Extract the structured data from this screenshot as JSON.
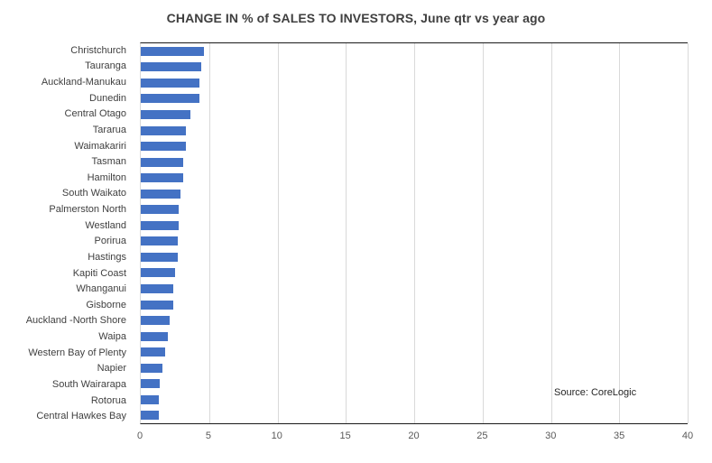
{
  "title": "CHANGE IN % of SALES TO INVESTORS, June qtr vs year ago",
  "source_note": "Source: CoreLogic",
  "colors": {
    "bar": "#4472c4",
    "gridline": "#d9d9d9",
    "axis_line": "#1a1a1a",
    "category_text": "#404040",
    "tick_text": "#595959",
    "title_text": "#3f3f3f"
  },
  "chart_data": {
    "type": "bar",
    "orientation": "horizontal",
    "title": "CHANGE IN % of SALES TO INVESTORS, June qtr vs year ago",
    "xlabel": "",
    "ylabel": "",
    "xlim": [
      0,
      40
    ],
    "x_ticks": [
      0,
      5,
      10,
      15,
      20,
      25,
      30,
      35,
      40
    ],
    "grid": true,
    "legend": false,
    "categories": [
      "Christchurch",
      "Tauranga",
      "Auckland-Manukau",
      "Dunedin",
      "Central Otago",
      "Tararua",
      "Waimakariri",
      "Tasman",
      "Hamilton",
      "South Waikato",
      "Palmerston North",
      "Westland",
      "Porirua",
      "Hastings",
      "Kapiti Coast",
      "Whanganui",
      "Gisborne",
      "Auckland -North Shore",
      "Waipa",
      "Western Bay of Plenty",
      "Napier",
      "South Wairarapa",
      "Rotorua",
      "Central Hawkes Bay"
    ],
    "values": [
      4.6,
      4.4,
      4.3,
      4.3,
      3.6,
      3.3,
      3.3,
      3.1,
      3.1,
      2.9,
      2.8,
      2.8,
      2.7,
      2.7,
      2.5,
      2.4,
      2.4,
      2.1,
      2.0,
      1.8,
      1.6,
      1.4,
      1.3,
      1.3
    ],
    "annotation": "Source: CoreLogic"
  }
}
